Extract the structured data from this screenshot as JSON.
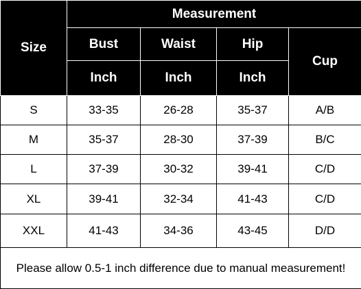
{
  "header": {
    "size": "Size",
    "measurement": "Measurement",
    "bust": "Bust",
    "waist": "Waist",
    "hip": "Hip",
    "cup": "Cup",
    "unit": "Inch"
  },
  "rows": [
    {
      "size": "S",
      "bust": "33-35",
      "waist": "26-28",
      "hip": "35-37",
      "cup": "A/B"
    },
    {
      "size": "M",
      "bust": "35-37",
      "waist": "28-30",
      "hip": "37-39",
      "cup": "B/C"
    },
    {
      "size": "L",
      "bust": "37-39",
      "waist": "30-32",
      "hip": "39-41",
      "cup": "C/D"
    },
    {
      "size": "XL",
      "bust": "39-41",
      "waist": "32-34",
      "hip": "41-43",
      "cup": "C/D"
    },
    {
      "size": "XXL",
      "bust": "41-43",
      "waist": "34-36",
      "hip": "43-45",
      "cup": "D/D"
    }
  ],
  "note": "Please allow 0.5-1 inch difference due to manual measurement!",
  "colors": {
    "header_bg": "#000000",
    "header_text": "#ffffff",
    "body_bg": "#ffffff",
    "border": "#000000"
  }
}
